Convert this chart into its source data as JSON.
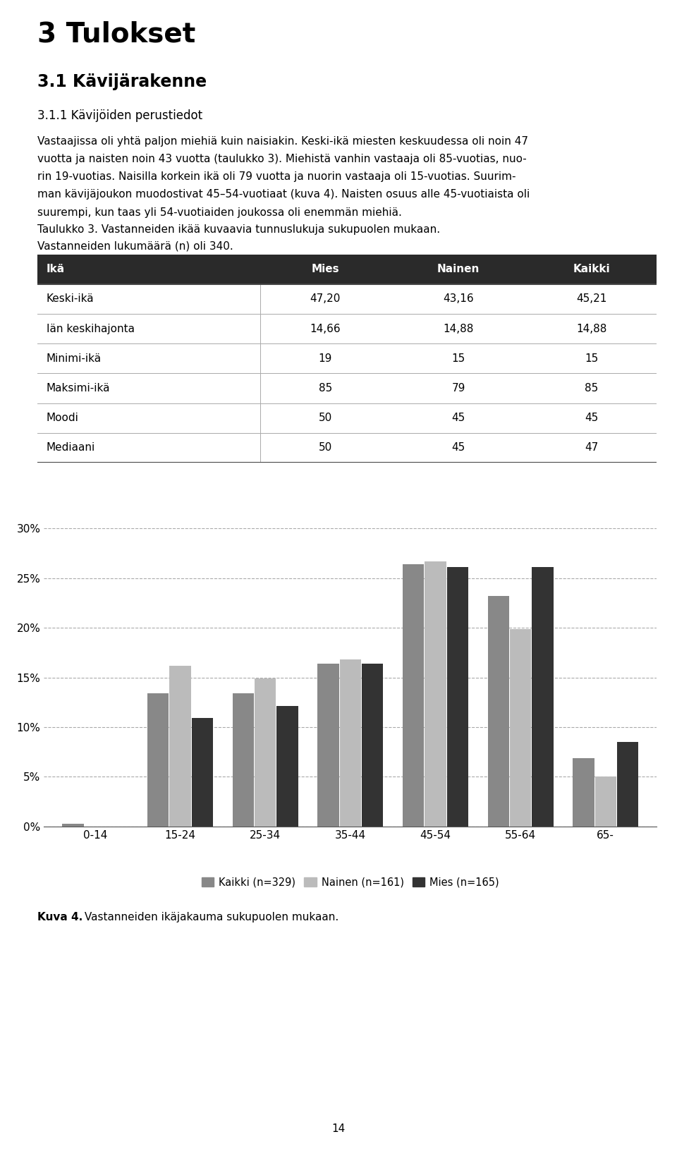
{
  "title_h1": "3 Tulokset",
  "title_h2": "3.1 Kävijärakenne",
  "title_h3": "3.1.1 Kävijöiden perustiedot",
  "body_text_line1": "Vastaajissa oli yhtä paljon miehiä kuin naisiakin. Keski-ikä miesten keskuudessa oli noin 47",
  "body_text_line2": "vuotta ja naisten noin 43 vuotta (taulukko 3). Miehistä vanhin vastaaja oli 85-vuotias, nuo-",
  "body_text_line3": "rin 19-vuotias. Naisilla korkein ikä oli 79 vuotta ja nuorin vastaaja oli 15-vuotias. Suurim-",
  "body_text_line4": "man kävijäjoukon muodostivat 45–54-vuotiaat (kuva 4). Naisten osuus alle 45-vuotiaista oli",
  "body_text_line5": "suurempi, kun taas yli 54-vuotiaiden joukossa oli enemmän miehiä.",
  "table_title": "Taulukko 3. Vastanneiden ikää kuvaavia tunnuslukuja sukupuolen mukaan.",
  "table_subtitle": "Vastanneiden lukumäärä (n) oli 340.",
  "table_headers": [
    "Ikä",
    "Mies",
    "Nainen",
    "Kaikki"
  ],
  "table_rows": [
    [
      "Keski-ikä",
      "47,20",
      "43,16",
      "45,21"
    ],
    [
      "Iän keskihajonta",
      "14,66",
      "14,88",
      "14,88"
    ],
    [
      "Minimi-ikä",
      "19",
      "15",
      "15"
    ],
    [
      "Maksimi-ikä",
      "85",
      "79",
      "85"
    ],
    [
      "Moodi",
      "50",
      "45",
      "45"
    ],
    [
      "Mediaani",
      "50",
      "45",
      "47"
    ]
  ],
  "categories": [
    "0-14",
    "15-24",
    "25-34",
    "35-44",
    "45-54",
    "55-64",
    "65-"
  ],
  "kaikki": [
    0.3,
    13.4,
    13.4,
    16.4,
    26.4,
    23.2,
    6.9
  ],
  "nainen": [
    0.0,
    16.2,
    14.9,
    16.8,
    26.7,
    19.9,
    5.0
  ],
  "mies": [
    0.0,
    10.9,
    12.1,
    16.4,
    26.1,
    26.1,
    8.5
  ],
  "bar_color_kaikki": "#888888",
  "bar_color_nainen": "#bbbbbb",
  "bar_color_mies": "#333333",
  "legend_labels": [
    "Kaikki (n=329)",
    "Nainen (n=161)",
    "Mies (n=165)"
  ],
  "chart_caption_bold": "Kuva 4.",
  "chart_caption_normal": " Vastanneiden ikäjakauma sukupuolen mukaan.",
  "page_number": "14",
  "ylim": [
    0,
    32
  ],
  "yticks": [
    0,
    5,
    10,
    15,
    20,
    25,
    30
  ],
  "ytick_labels": [
    "0%",
    "5%",
    "10%",
    "15%",
    "20%",
    "25%",
    "30%"
  ],
  "background_color": "#ffffff"
}
